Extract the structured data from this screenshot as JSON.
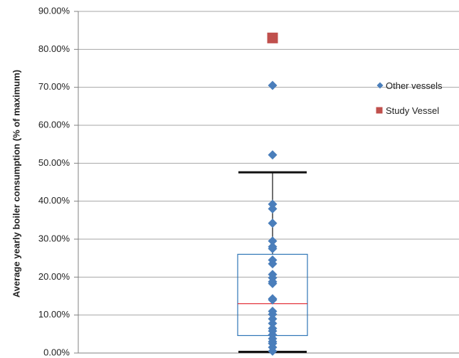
{
  "chart_data": {
    "type": "scatter",
    "title": "",
    "xlabel": "",
    "ylabel": "Average yearly boiler consumption (% of maximum)",
    "ylim": [
      0,
      90
    ],
    "yticks": [
      0,
      10,
      20,
      30,
      40,
      50,
      60,
      70,
      80,
      90
    ],
    "ytick_labels": [
      "0.00%",
      "10.00%",
      "20.00%",
      "30.00%",
      "40.00%",
      "50.00%",
      "60.00%",
      "70.00%",
      "80.00%",
      "90.00%"
    ],
    "grid": true,
    "legend_position": "right",
    "series": [
      {
        "name": "Other vessels",
        "marker": "diamond",
        "color": "#4a7ebb",
        "values": [
          70.5,
          52.2,
          39.2,
          38.0,
          34.2,
          29.5,
          28.0,
          27.5,
          24.5,
          23.5,
          20.7,
          19.8,
          18.8,
          18.3,
          14.3,
          14.0,
          11.0,
          10.2,
          9.0,
          7.8,
          6.5,
          5.8,
          4.8,
          3.8,
          3.0,
          2.5,
          1.5,
          0.5
        ]
      },
      {
        "name": "Study Vessel",
        "marker": "square",
        "color": "#c0504d",
        "values": [
          83.0
        ]
      }
    ],
    "box": {
      "whisker_low": 0.3,
      "q1": 4.6,
      "median": 13.0,
      "q3": 26.0,
      "whisker_high": 47.6,
      "box_color": "#2e75b6",
      "median_color": "#e0202a",
      "whisker_color": "#111111"
    }
  }
}
